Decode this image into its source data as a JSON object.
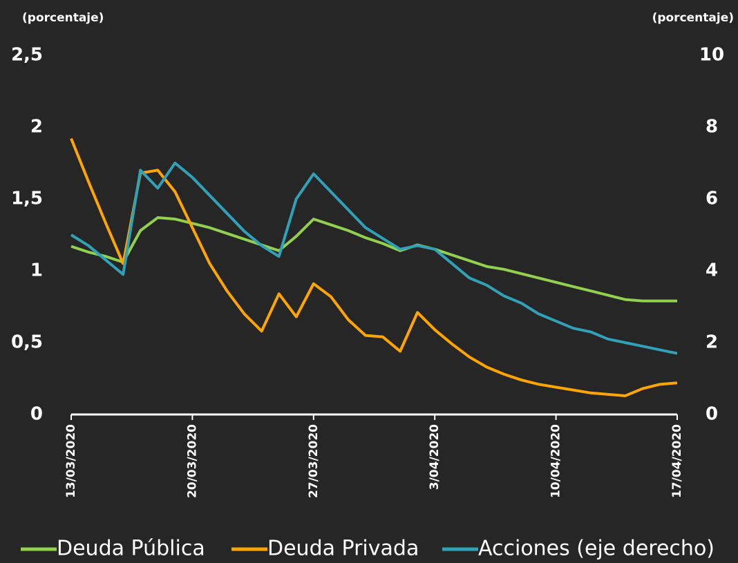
{
  "chart_data": {
    "type": "line",
    "y_label": "(porcentaje)",
    "y2_label": "(porcentaje)",
    "categories": [
      "13/03/2020",
      null,
      null,
      null,
      null,
      null,
      null,
      "20/03/2020",
      null,
      null,
      null,
      null,
      null,
      null,
      "27/03/2020",
      null,
      null,
      null,
      null,
      null,
      null,
      "3/04/2020",
      null,
      null,
      null,
      null,
      null,
      null,
      "10/04/2020",
      null,
      null,
      null,
      null,
      null,
      null,
      "17/04/2020"
    ],
    "series": [
      {
        "name": "Deuda Pública",
        "color": "#92d050",
        "values": [
          1.17,
          1.13,
          1.1,
          1.06,
          1.28,
          1.37,
          1.36,
          1.33,
          1.3,
          1.26,
          1.22,
          1.18,
          1.14,
          1.24,
          1.36,
          1.32,
          1.28,
          1.23,
          1.19,
          1.14,
          1.18,
          1.15,
          1.11,
          1.07,
          1.03,
          1.01,
          0.98,
          0.95,
          0.92,
          0.89,
          0.86,
          0.83,
          0.8,
          0.79,
          0.79,
          0.79
        ]
      },
      {
        "name": "Deuda Privada",
        "color": "#ffa500",
        "values": [
          1.92,
          1.62,
          1.33,
          1.05,
          1.68,
          1.7,
          1.55,
          1.3,
          1.05,
          0.86,
          0.7,
          0.58,
          0.84,
          0.68,
          0.91,
          0.82,
          0.66,
          0.55,
          0.54,
          0.44,
          0.71,
          0.59,
          0.49,
          0.4,
          0.33,
          0.28,
          0.24,
          0.21,
          0.19,
          0.17,
          0.15,
          0.14,
          0.13,
          0.18,
          0.21,
          0.22
        ]
      },
      {
        "name": "Acciones (eje derecho)",
        "color": "#31a1b8",
        "axis": "y2",
        "values": [
          5.0,
          4.7,
          4.3,
          3.9,
          6.8,
          6.3,
          7.0,
          6.6,
          6.1,
          5.6,
          5.1,
          4.7,
          4.4,
          6.0,
          6.7,
          6.2,
          5.7,
          5.2,
          4.9,
          4.6,
          4.7,
          4.6,
          4.2,
          3.8,
          3.6,
          3.3,
          3.1,
          2.8,
          2.6,
          2.4,
          2.3,
          2.1,
          2.0,
          1.9,
          1.8,
          1.7
        ]
      }
    ],
    "ylim": [
      0,
      2.5
    ],
    "yticks": [
      0,
      {
        "value": 0.5,
        "label": "0,5"
      },
      1,
      {
        "value": 1.5,
        "label": "1,5"
      },
      2,
      {
        "value": 2.5,
        "label": "2,5"
      }
    ],
    "y2lim": [
      0,
      10
    ],
    "y2ticks": [
      0,
      2,
      4,
      6,
      8,
      10
    ],
    "legend": "bottom"
  }
}
